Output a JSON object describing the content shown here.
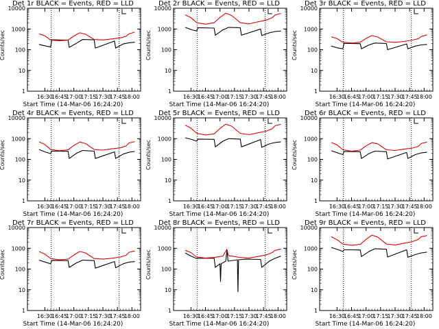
{
  "chart_data": [
    {
      "type": "line",
      "title": "Det 1r BLACK = Events, RED = LLD",
      "xlabel": "Start Time (14-Mar-06 16:24:20)",
      "ylabel": "Counts/sec",
      "yscale": "log",
      "ylim": [
        1,
        10000
      ],
      "yticks": [
        "1",
        "10",
        "100",
        "1000",
        "10000"
      ],
      "xticks": [
        "16:30",
        "16:45",
        "17:00",
        "17:15",
        "17:30",
        "17:45",
        "18:00"
      ],
      "xlim": [
        16.2,
        18.15
      ],
      "vlines": [
        16.61,
        17.78
      ],
      "grid": false,
      "legend": "none",
      "series": [
        {
          "name": "BLACK",
          "color": "#000000",
          "x": [
            16.4,
            16.52,
            16.6,
            16.62,
            16.9,
            16.92,
            17.05,
            17.15,
            17.35,
            17.37,
            17.7,
            17.72,
            17.85,
            17.95,
            18.05
          ],
          "y": [
            180,
            150,
            135,
            300,
            290,
            130,
            210,
            310,
            300,
            120,
            260,
            120,
            190,
            215,
            230
          ]
        },
        {
          "name": "RED",
          "color": "#e00000",
          "x": [
            16.4,
            16.5,
            16.6,
            16.75,
            16.9,
            17.0,
            17.1,
            17.2,
            17.35,
            17.5,
            17.65,
            17.8,
            17.9,
            17.95,
            18.05
          ],
          "y": [
            580,
            470,
            290,
            270,
            290,
            460,
            650,
            560,
            310,
            295,
            330,
            370,
            440,
            580,
            700
          ]
        }
      ]
    },
    {
      "type": "line",
      "title": "Det 2r BLACK = Events, RED = LLD",
      "xlabel": "Start Time (14-Mar-06 16:24:20)",
      "ylabel": "Counts/sec",
      "yscale": "log",
      "ylim": [
        1,
        10000
      ],
      "yticks": [
        "1",
        "10",
        "100",
        "1000",
        "10000"
      ],
      "xticks": [
        "16:30",
        "16:45",
        "17:00",
        "17:15",
        "17:30",
        "17:45",
        "18:00"
      ],
      "xlim": [
        16.2,
        18.15
      ],
      "vlines": [
        16.61,
        17.78
      ],
      "grid": false,
      "legend": "none",
      "series": [
        {
          "name": "BLACK",
          "color": "#000000",
          "x": [
            16.4,
            16.52,
            16.6,
            16.62,
            16.9,
            16.92,
            17.05,
            17.15,
            17.35,
            17.37,
            17.7,
            17.72,
            17.85,
            17.95,
            18.05
          ],
          "y": [
            1200,
            900,
            800,
            1150,
            1100,
            500,
            900,
            1200,
            1150,
            500,
            1000,
            480,
            650,
            750,
            800
          ]
        },
        {
          "name": "RED",
          "color": "#e00000",
          "x": [
            16.4,
            16.5,
            16.6,
            16.75,
            16.9,
            17.0,
            17.1,
            17.2,
            17.35,
            17.5,
            17.65,
            17.8,
            17.9,
            17.95,
            18.05
          ],
          "y": [
            4800,
            3500,
            2000,
            1700,
            2000,
            3600,
            5800,
            4500,
            2000,
            1750,
            2200,
            2700,
            3500,
            4700,
            5600
          ]
        }
      ]
    },
    {
      "type": "line",
      "title": "Det 3r BLACK = Events, RED = LLD",
      "xlabel": "Start Time (14-Mar-06 16:24:20)",
      "ylabel": "Counts/sec",
      "yscale": "log",
      "ylim": [
        1,
        10000
      ],
      "yticks": [
        "1",
        "10",
        "100",
        "1000",
        "10000"
      ],
      "xticks": [
        "16:30",
        "16:45",
        "17:00",
        "17:15",
        "17:30",
        "17:45",
        "18:00"
      ],
      "xlim": [
        16.2,
        18.15
      ],
      "vlines": [
        16.61,
        17.78
      ],
      "grid": false,
      "legend": "none",
      "series": [
        {
          "name": "BLACK",
          "color": "#000000",
          "x": [
            16.4,
            16.52,
            16.6,
            16.62,
            16.9,
            16.92,
            17.05,
            17.15,
            17.35,
            17.37,
            17.7,
            17.72,
            17.85,
            17.95,
            18.05
          ],
          "y": [
            150,
            120,
            110,
            200,
            195,
            110,
            170,
            210,
            200,
            100,
            190,
            110,
            150,
            170,
            180
          ]
        },
        {
          "name": "RED",
          "color": "#e00000",
          "x": [
            16.4,
            16.5,
            16.6,
            16.75,
            16.9,
            17.0,
            17.1,
            17.2,
            17.35,
            17.5,
            17.65,
            17.8,
            17.9,
            17.95,
            18.05
          ],
          "y": [
            420,
            340,
            230,
            210,
            230,
            350,
            480,
            410,
            240,
            225,
            250,
            290,
            340,
            430,
            520
          ]
        }
      ]
    },
    {
      "type": "line",
      "title": "Det 4r BLACK = Events, RED = LLD",
      "xlabel": "Start Time (14-Mar-06 16:24:20)",
      "ylabel": "Counts/sec",
      "yscale": "log",
      "ylim": [
        1,
        10000
      ],
      "yticks": [
        "1",
        "10",
        "100",
        "1000",
        "10000"
      ],
      "xticks": [
        "16:30",
        "16:45",
        "17:00",
        "17:15",
        "17:30",
        "17:45",
        "18:00"
      ],
      "xlim": [
        16.2,
        18.15
      ],
      "vlines": [
        16.61,
        17.78
      ],
      "grid": false,
      "legend": "none",
      "series": [
        {
          "name": "BLACK",
          "color": "#000000",
          "x": [
            16.4,
            16.52,
            16.6,
            16.62,
            16.9,
            16.92,
            17.05,
            17.15,
            17.35,
            17.37,
            17.7,
            17.72,
            17.85,
            17.95,
            18.05
          ],
          "y": [
            300,
            220,
            190,
            250,
            245,
            110,
            200,
            270,
            250,
            110,
            230,
            110,
            180,
            220,
            240
          ]
        },
        {
          "name": "RED",
          "color": "#e00000",
          "x": [
            16.4,
            16.5,
            16.6,
            16.75,
            16.9,
            17.0,
            17.1,
            17.2,
            17.35,
            17.5,
            17.65,
            17.8,
            17.9,
            17.95,
            18.05
          ],
          "y": [
            700,
            520,
            300,
            260,
            290,
            470,
            680,
            580,
            300,
            280,
            320,
            360,
            440,
            620,
            720
          ]
        }
      ]
    },
    {
      "type": "line",
      "title": "Det 5r BLACK = Events, RED = LLD",
      "xlabel": "Start Time (14-Mar-06 16:24:20)",
      "ylabel": "Counts/sec",
      "yscale": "log",
      "ylim": [
        1,
        10000
      ],
      "yticks": [
        "1",
        "10",
        "100",
        "1000",
        "10000"
      ],
      "xticks": [
        "16:30",
        "16:45",
        "17:00",
        "17:15",
        "17:30",
        "17:45",
        "18:00"
      ],
      "xlim": [
        16.2,
        18.15
      ],
      "vlines": [
        16.61,
        17.78
      ],
      "grid": false,
      "legend": "none",
      "series": [
        {
          "name": "BLACK",
          "color": "#000000",
          "x": [
            16.4,
            16.52,
            16.6,
            16.62,
            16.9,
            16.92,
            17.05,
            17.15,
            17.35,
            17.37,
            17.7,
            17.72,
            17.85,
            17.95,
            18.05
          ],
          "y": [
            1100,
            900,
            750,
            950,
            920,
            400,
            750,
            1000,
            950,
            400,
            900,
            380,
            560,
            650,
            700
          ]
        },
        {
          "name": "RED",
          "color": "#e00000",
          "x": [
            16.4,
            16.5,
            16.6,
            16.75,
            16.9,
            17.0,
            17.1,
            17.2,
            17.35,
            17.5,
            17.65,
            17.8,
            17.9,
            17.95,
            18.05
          ],
          "y": [
            4500,
            3200,
            1800,
            1500,
            1700,
            3100,
            5000,
            4000,
            1800,
            1550,
            1900,
            2300,
            3000,
            4200,
            4900
          ]
        }
      ]
    },
    {
      "type": "line",
      "title": "Det 6r BLACK = Events, RED = LLD",
      "xlabel": "Start Time (14-Mar-06 16:24:20)",
      "ylabel": "Counts/sec",
      "yscale": "log",
      "ylim": [
        1,
        10000
      ],
      "yticks": [
        "1",
        "10",
        "100",
        "1000",
        "10000"
      ],
      "xticks": [
        "16:30",
        "16:45",
        "17:00",
        "17:15",
        "17:30",
        "17:45",
        "18:00"
      ],
      "xlim": [
        16.2,
        18.15
      ],
      "vlines": [
        16.61,
        17.78
      ],
      "grid": false,
      "legend": "none",
      "series": [
        {
          "name": "BLACK",
          "color": "#000000",
          "x": [
            16.4,
            16.52,
            16.6,
            16.62,
            16.9,
            16.92,
            17.05,
            17.15,
            17.35,
            17.37,
            17.7,
            17.72,
            17.85,
            17.95,
            18.05
          ],
          "y": [
            260,
            200,
            170,
            240,
            235,
            110,
            190,
            250,
            235,
            105,
            215,
            110,
            170,
            205,
            220
          ]
        },
        {
          "name": "RED",
          "color": "#e00000",
          "x": [
            16.4,
            16.5,
            16.6,
            16.75,
            16.9,
            17.0,
            17.1,
            17.2,
            17.35,
            17.5,
            17.65,
            17.8,
            17.9,
            17.95,
            18.05
          ],
          "y": [
            650,
            500,
            290,
            250,
            280,
            450,
            640,
            560,
            290,
            270,
            310,
            350,
            420,
            580,
            680
          ]
        }
      ]
    },
    {
      "type": "line",
      "title": "Det 7r BLACK = Events, RED = LLD",
      "xlabel": "Start Time (14-Mar-06 16:24:20)",
      "ylabel": "Counts/sec",
      "yscale": "log",
      "ylim": [
        1,
        10000
      ],
      "yticks": [
        "1",
        "10",
        "100",
        "1000",
        "10000"
      ],
      "xticks": [
        "16:30",
        "16:45",
        "17:00",
        "17:15",
        "17:30",
        "17:45",
        "18:00"
      ],
      "xlim": [
        16.2,
        18.15
      ],
      "vlines": [
        16.61,
        17.78
      ],
      "grid": false,
      "legend": "none",
      "series": [
        {
          "name": "BLACK",
          "color": "#000000",
          "x": [
            16.4,
            16.52,
            16.6,
            16.62,
            16.9,
            16.92,
            17.05,
            17.15,
            17.35,
            17.37,
            17.7,
            17.72,
            17.85,
            17.95,
            18.05
          ],
          "y": [
            270,
            210,
            180,
            260,
            255,
            120,
            200,
            270,
            255,
            110,
            230,
            115,
            180,
            215,
            230
          ]
        },
        {
          "name": "RED",
          "color": "#e00000",
          "x": [
            16.4,
            16.5,
            16.6,
            16.75,
            16.9,
            17.0,
            17.1,
            17.2,
            17.35,
            17.5,
            17.65,
            17.8,
            17.9,
            17.95,
            18.05
          ],
          "y": [
            700,
            520,
            320,
            280,
            300,
            480,
            700,
            600,
            320,
            300,
            330,
            380,
            460,
            640,
            740
          ]
        }
      ]
    },
    {
      "type": "line",
      "title": "Det 8r BLACK = Events, RED = LLD",
      "xlabel": "Start Time (14-Mar-06 16:24:20)",
      "ylabel": "Counts/sec",
      "yscale": "log",
      "ylim": [
        1,
        10000
      ],
      "yticks": [
        "1",
        "10",
        "100",
        "1000",
        "10000"
      ],
      "xticks": [
        "16:30",
        "16:45",
        "17:00",
        "17:15",
        "17:30",
        "17:45",
        "18:00"
      ],
      "xlim": [
        16.2,
        18.15
      ],
      "vlines": [
        16.61,
        17.78
      ],
      "grid": false,
      "legend": "none",
      "series": [
        {
          "name": "BLACK",
          "color": "#000000",
          "x": [
            16.4,
            16.5,
            16.6,
            16.62,
            16.9,
            16.92,
            17.0,
            17.01,
            17.02,
            17.1,
            17.12,
            17.14,
            17.3,
            17.31,
            17.32,
            17.45,
            17.7,
            17.72,
            17.85,
            17.95,
            18.05
          ],
          "y": [
            600,
            420,
            320,
            330,
            330,
            120,
            180,
            25,
            180,
            240,
            800,
            240,
            280,
            8,
            280,
            300,
            290,
            120,
            240,
            330,
            420
          ]
        },
        {
          "name": "RED",
          "color": "#e00000",
          "x": [
            16.4,
            16.5,
            16.6,
            16.75,
            16.9,
            17.05,
            17.12,
            17.14,
            17.16,
            17.2,
            17.35,
            17.5,
            17.65,
            17.8,
            17.9,
            17.95,
            18.05
          ],
          "y": [
            800,
            620,
            380,
            340,
            360,
            420,
            900,
            500,
            420,
            420,
            360,
            340,
            400,
            480,
            620,
            800,
            920
          ]
        }
      ]
    },
    {
      "type": "line",
      "title": "Det 9r BLACK = Events, RED = LLD",
      "xlabel": "Start Time (14-Mar-06 16:24:20)",
      "ylabel": "Counts/sec",
      "yscale": "log",
      "ylim": [
        1,
        10000
      ],
      "yticks": [
        "1",
        "10",
        "100",
        "1000",
        "10000"
      ],
      "xticks": [
        "16:30",
        "16:45",
        "17:00",
        "17:15",
        "17:30",
        "17:45",
        "18:00"
      ],
      "xlim": [
        16.2,
        18.15
      ],
      "vlines": [
        16.61,
        17.78
      ],
      "grid": false,
      "legend": "none",
      "series": [
        {
          "name": "BLACK",
          "color": "#000000",
          "x": [
            16.4,
            16.52,
            16.6,
            16.62,
            16.9,
            16.92,
            17.05,
            17.15,
            17.35,
            17.37,
            17.7,
            17.72,
            17.85,
            17.95,
            18.05
          ],
          "y": [
            1100,
            850,
            700,
            850,
            830,
            400,
            700,
            950,
            900,
            380,
            850,
            370,
            500,
            600,
            650
          ]
        },
        {
          "name": "RED",
          "color": "#e00000",
          "x": [
            16.4,
            16.5,
            16.6,
            16.75,
            16.9,
            17.0,
            17.1,
            17.2,
            17.35,
            17.5,
            17.65,
            17.8,
            17.9,
            17.95,
            18.05
          ],
          "y": [
            3600,
            2600,
            1600,
            1400,
            1550,
            2700,
            4300,
            3500,
            1600,
            1450,
            1750,
            2100,
            2700,
            3600,
            4100
          ]
        }
      ]
    }
  ]
}
